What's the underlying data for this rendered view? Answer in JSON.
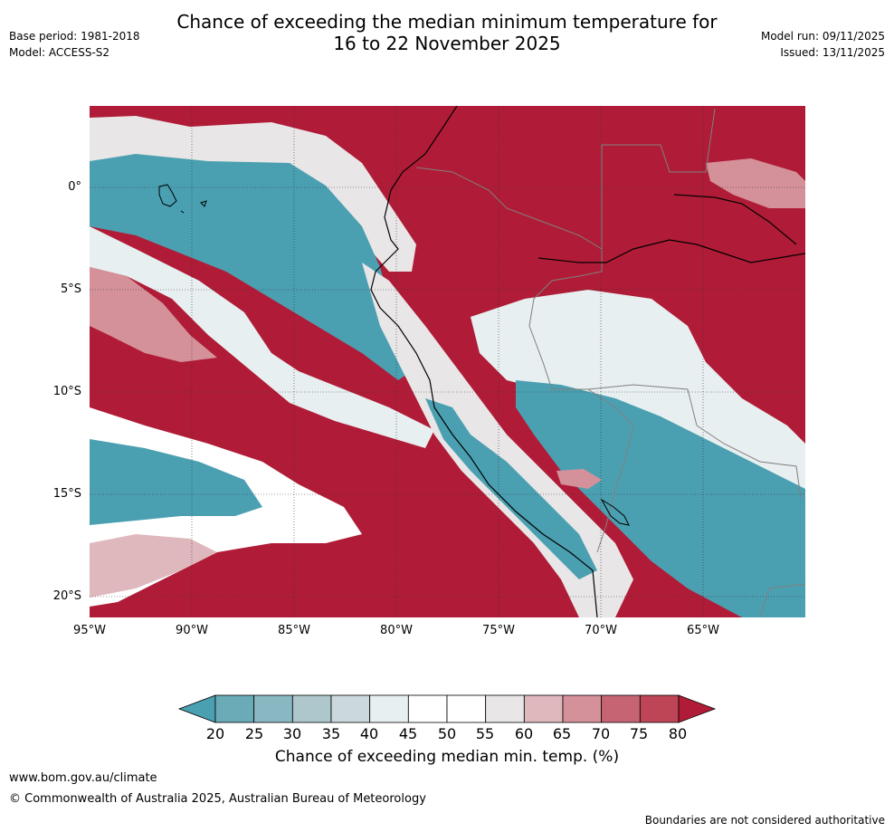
{
  "title": {
    "line1": "Chance of exceeding the median minimum temperature for",
    "line2": "16 to 22 November 2025"
  },
  "meta_left": {
    "base_period": "Base period: 1981-2018",
    "model": "Model: ACCESS-S2"
  },
  "meta_right": {
    "model_run": "Model run: 09/11/2025",
    "issued": "Issued: 13/11/2025"
  },
  "map": {
    "latitude_labels": [
      "0°",
      "5°S",
      "10°S",
      "15°S",
      "20°S"
    ],
    "longitude_labels": [
      "95°W",
      "90°W",
      "85°W",
      "80°W",
      "75°W",
      "70°W",
      "65°W"
    ],
    "colors": {
      "ocean_high": "#b01c37",
      "ocean_low": "#4aa0b1",
      "coast": "#000000",
      "borders": "#808080"
    }
  },
  "colorbar": {
    "ticks": [
      "20",
      "25",
      "30",
      "35",
      "40",
      "45",
      "50",
      "55",
      "60",
      "65",
      "70",
      "75",
      "80"
    ],
    "colors": [
      "#4aa0b1",
      "#6aabb7",
      "#8ab8c2",
      "#adc7cc",
      "#ccd9dc",
      "#e8eff1",
      "#ffffff",
      "#ffffff",
      "#e9e6e7",
      "#dfb8be",
      "#d4919a",
      "#c76474",
      "#bd4556",
      "#b01c37"
    ],
    "label": "Chance of exceeding median min. temp. (%)"
  },
  "footer": {
    "url": "www.bom.gov.au/climate",
    "copyright": "© Commonwealth of Australia 2025, Australian Bureau of Meteorology",
    "note": "Boundaries are not considered authoritative"
  }
}
